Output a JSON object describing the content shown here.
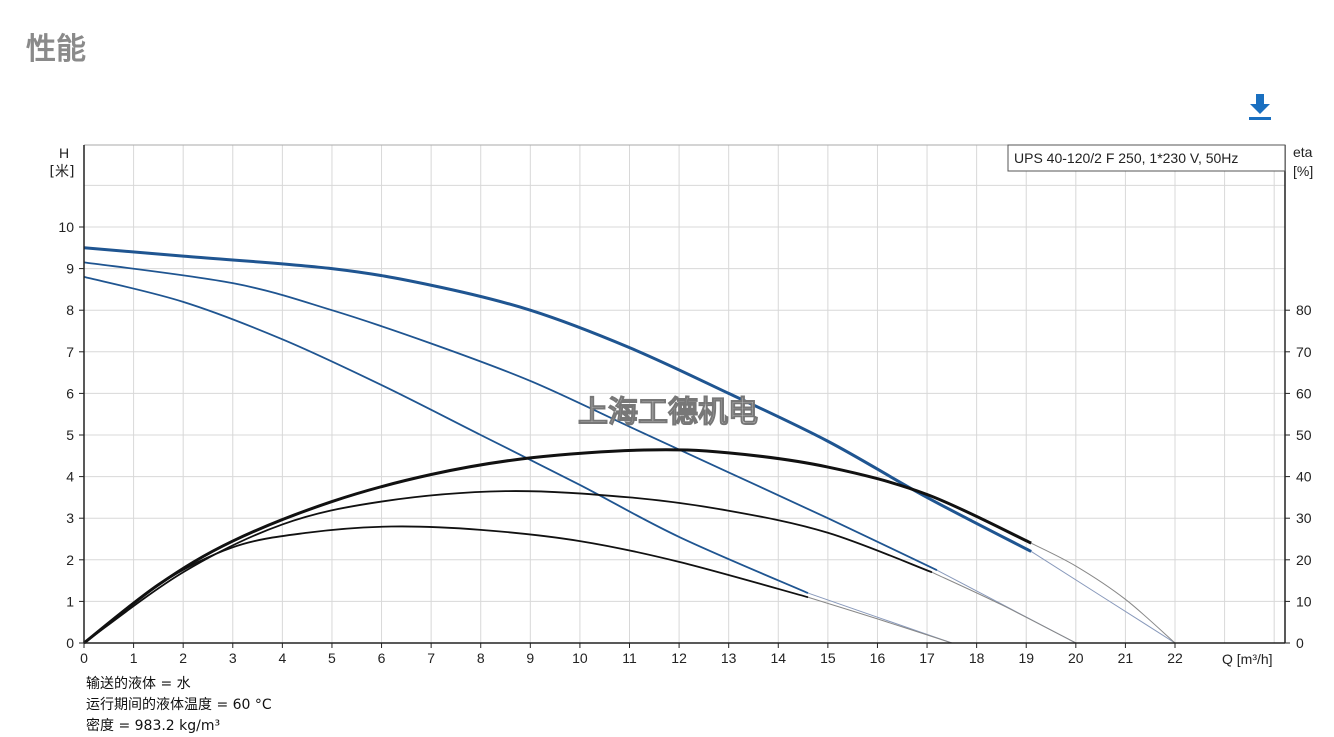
{
  "page_title": "性能",
  "download_icon": "download-icon",
  "colors": {
    "head": "#1f5591",
    "eta": "#111111",
    "extension": "#888888",
    "grid": "#d8d8d8",
    "title": "#8a8a8a",
    "download": "#1a6fc0"
  },
  "notes": [
    "输送的液体 = 水",
    "运行期间的液体温度 = 60 °C",
    "密度 = 983.2 kg/m³"
  ],
  "watermark": "上海工德机电",
  "chart_data": {
    "type": "line",
    "title": "UPS 40-120/2 F 250, 1*230 V, 50Hz",
    "xlabel": "Q [m³/h]",
    "ylabel": "H\n[米]",
    "ylabel_lines": [
      "H",
      "[米]"
    ],
    "y2label_lines": [
      "eta",
      "[%]"
    ],
    "xlim": [
      0,
      24
    ],
    "ylim": [
      0,
      12
    ],
    "y2lim": [
      0,
      120
    ],
    "grid": true,
    "legend": "top-right",
    "x_ticks": [
      0,
      1,
      2,
      3,
      4,
      5,
      6,
      7,
      8,
      9,
      10,
      11,
      12,
      13,
      14,
      15,
      16,
      17,
      18,
      19,
      20,
      21,
      22
    ],
    "y_ticks": [
      0,
      1,
      2,
      3,
      4,
      5,
      6,
      7,
      8,
      9,
      10
    ],
    "y2_ticks": [
      0,
      10,
      20,
      30,
      40,
      50,
      60,
      70,
      80
    ],
    "series": [
      {
        "axis": "H",
        "weight": "heavy",
        "x": [
          0,
          2,
          5,
          7,
          9,
          11,
          13,
          15,
          17,
          19.1
        ],
        "y": [
          9.5,
          9.3,
          9.0,
          8.6,
          8.0,
          7.1,
          6.0,
          4.85,
          3.5,
          2.2
        ],
        "extension": {
          "x": [
            19.1,
            22
          ],
          "y": [
            2.2,
            0
          ]
        }
      },
      {
        "axis": "H",
        "weight": "medium",
        "x": [
          0,
          3,
          5,
          7,
          9,
          11,
          13,
          15,
          17.2
        ],
        "y": [
          9.15,
          8.65,
          8.0,
          7.2,
          6.3,
          5.2,
          4.1,
          3.0,
          1.75
        ],
        "extension": {
          "x": [
            17.2,
            20
          ],
          "y": [
            1.75,
            0
          ]
        }
      },
      {
        "axis": "H",
        "weight": "medium",
        "x": [
          0,
          2,
          4,
          6,
          8,
          10,
          12,
          14.6
        ],
        "y": [
          8.8,
          8.2,
          7.3,
          6.2,
          5.0,
          3.8,
          2.55,
          1.2
        ],
        "extension": {
          "x": [
            14.6,
            17.5
          ],
          "y": [
            1.2,
            0
          ]
        }
      },
      {
        "axis": "eta",
        "weight": "heavy",
        "x": [
          0,
          1.5,
          3,
          5,
          7,
          9,
          11.3,
          13,
          15,
          17,
          19.1
        ],
        "y": [
          0,
          14,
          24.5,
          34,
          40.5,
          44.5,
          46.4,
          45.7,
          42.3,
          35.7,
          24
        ],
        "extension": {
          "x": [
            19.1,
            20,
            21,
            22
          ],
          "y": [
            24,
            18.5,
            10.5,
            0
          ]
        }
      },
      {
        "axis": "eta",
        "weight": "medium",
        "x": [
          0,
          2,
          4,
          6,
          8.5,
          11,
          13,
          15,
          17.1
        ],
        "y": [
          0,
          17,
          28.5,
          34,
          36.5,
          35,
          31.8,
          26.5,
          17
        ],
        "extension": {
          "x": [
            17.1,
            18.5,
            20
          ],
          "y": [
            17,
            9.2,
            0
          ]
        }
      },
      {
        "axis": "eta",
        "weight": "medium",
        "x": [
          0,
          1.5,
          3,
          4.5,
          6.2,
          8,
          10,
          12,
          14.6
        ],
        "y": [
          0,
          14,
          23,
          26.5,
          28,
          27.2,
          24.5,
          19.5,
          11
        ],
        "extension": {
          "x": [
            14.6,
            16,
            17.5
          ],
          "y": [
            11,
            5.8,
            0
          ]
        }
      }
    ]
  }
}
